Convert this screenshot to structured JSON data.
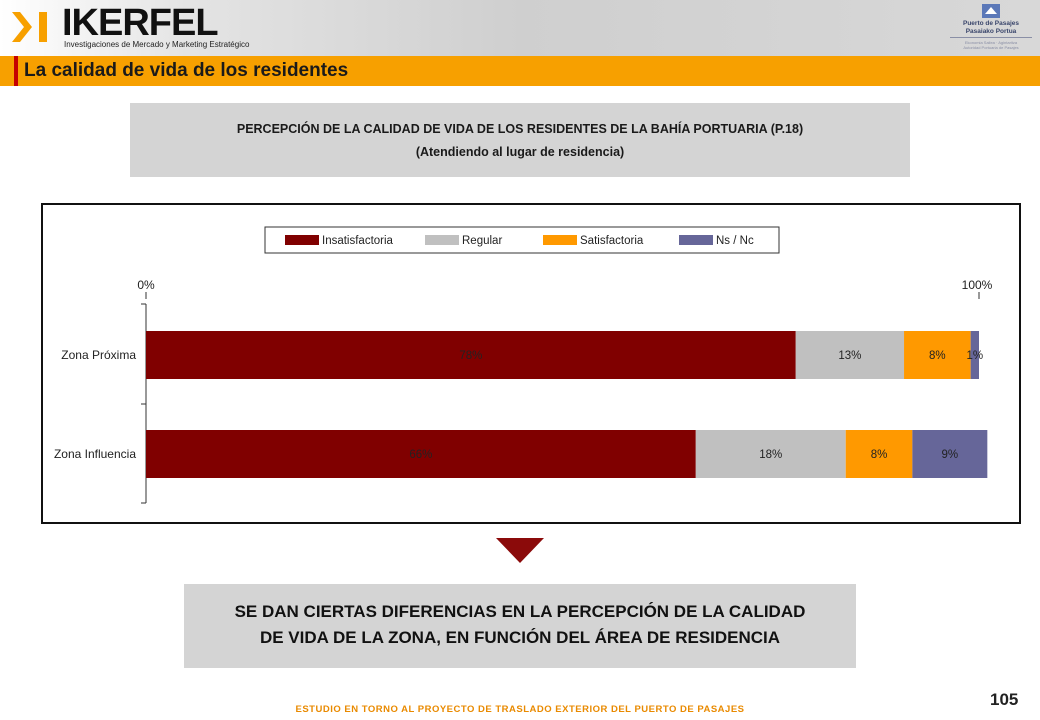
{
  "header": {
    "logo_name": "IKERFEL",
    "logo_subtitle": "Investigaciones de Mercado y Marketing Estratégico",
    "partner_line1": "Puerto de Pasajes",
    "partner_line2": "Pasaiako Portua",
    "partner_small1": "Ekonomia Sailea · Agintaritza",
    "partner_small2": "Autoridad Portuaria de Pasajes"
  },
  "section": {
    "title": "La calidad de vida de los residentes"
  },
  "chart_box_title": {
    "line1": "PERCEPCIÓN DE LA CALIDAD DE VIDA DE LOS RESIDENTES DE LA BAHÍA PORTUARIA (P.18)",
    "line2": "(Atendiendo al lugar de residencia)"
  },
  "chart_data": {
    "type": "bar",
    "orientation": "horizontal",
    "stacked": true,
    "categories": [
      "Zona Próxima",
      "Zona Influencia"
    ],
    "series": [
      {
        "name": "Insatisfactoria",
        "color": "#800000",
        "values": [
          78,
          66
        ],
        "labels": [
          "78%",
          "66%"
        ]
      },
      {
        "name": "Regular",
        "color": "#c0c0c0",
        "values": [
          13,
          18
        ],
        "labels": [
          "13%",
          "18%"
        ]
      },
      {
        "name": "Satisfactoria",
        "color": "#ff9900",
        "values": [
          8,
          8
        ],
        "labels": [
          "8%",
          "8%"
        ]
      },
      {
        "name": "Ns / Nc",
        "color": "#666699",
        "values": [
          1,
          9
        ],
        "labels": [
          "1%",
          "9%"
        ]
      }
    ],
    "xlim": [
      0,
      100
    ],
    "x_ticks": [
      "0%",
      "100%"
    ],
    "unit": "%",
    "legend_position": "top",
    "grid": false
  },
  "conclusion": {
    "line1": "SE DAN CIERTAS DIFERENCIAS EN LA PERCEPCIÓN DE LA CALIDAD",
    "line2": "DE VIDA DE LA ZONA, EN FUNCIÓN DEL ÁREA DE RESIDENCIA"
  },
  "page_number": "105",
  "footer": "ESTUDIO EN TORNO AL PROYECTO DE TRASLADO EXTERIOR DEL PUERTO DE PASAJES",
  "colors": {
    "accent": "#f7a000",
    "brand_red": "#c50000",
    "panel_gray": "#d4d4d4",
    "footer_orange": "#e98a00"
  }
}
